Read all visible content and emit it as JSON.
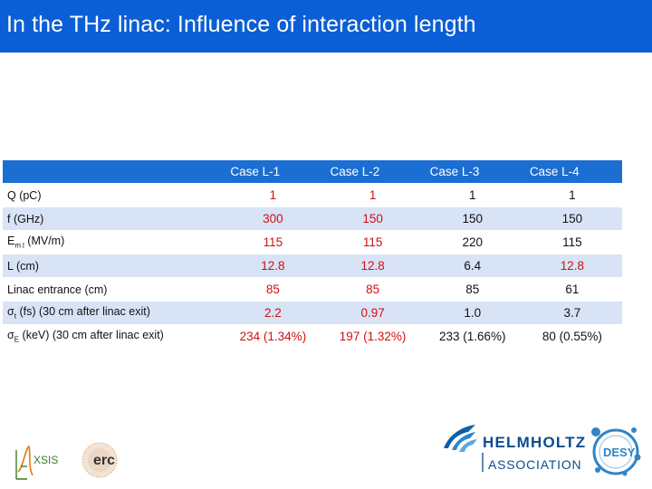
{
  "title": "In the THz linac: Influence of interaction length",
  "table": {
    "header": [
      "Case L-1",
      "Case L-2",
      "Case L-3",
      "Case L-4"
    ],
    "rows": [
      {
        "label": "Q (pC)",
        "values": [
          "1",
          "1",
          "1",
          "1"
        ]
      },
      {
        "label": "f (GHz)",
        "values": [
          "300",
          "150",
          "150",
          "150"
        ]
      },
      {
        "label": "E",
        "sub": "m",
        "sub2": "l",
        "tail": "(MV/m)",
        "values": [
          "115",
          "115",
          "220",
          "115"
        ]
      },
      {
        "label": "L (cm)",
        "values": [
          "12.8",
          "12.8",
          "6.4",
          "12.8"
        ]
      },
      {
        "label": "Linac entrance (cm)",
        "values": [
          "85",
          "85",
          "85",
          "61"
        ]
      },
      {
        "label": "σ",
        "sub": "t",
        "tail": "(fs) (30 cm after linac exit)",
        "values": [
          "2.2",
          "0.97",
          "1.0",
          "3.7"
        ]
      },
      {
        "label": "σ",
        "sub": "E",
        "tail": "(keV) (30 cm after linac exit)",
        "values": [
          "234 (1.34%)",
          "197 (1.32%)",
          "233 (1.66%)",
          "80 (0.55%)"
        ]
      }
    ]
  },
  "logos": {
    "axsis": "XSIS",
    "erc": "erc",
    "helmholtz_line1": "HELMHOLTZ",
    "helmholtz_line2": "ASSOCIATION",
    "desy": "DESY"
  },
  "colors": {
    "title_bar": "#0a5fd6",
    "header_row": "#1b6ed2",
    "row_alt": "#d8e3f6",
    "value_red": "#d01010"
  }
}
